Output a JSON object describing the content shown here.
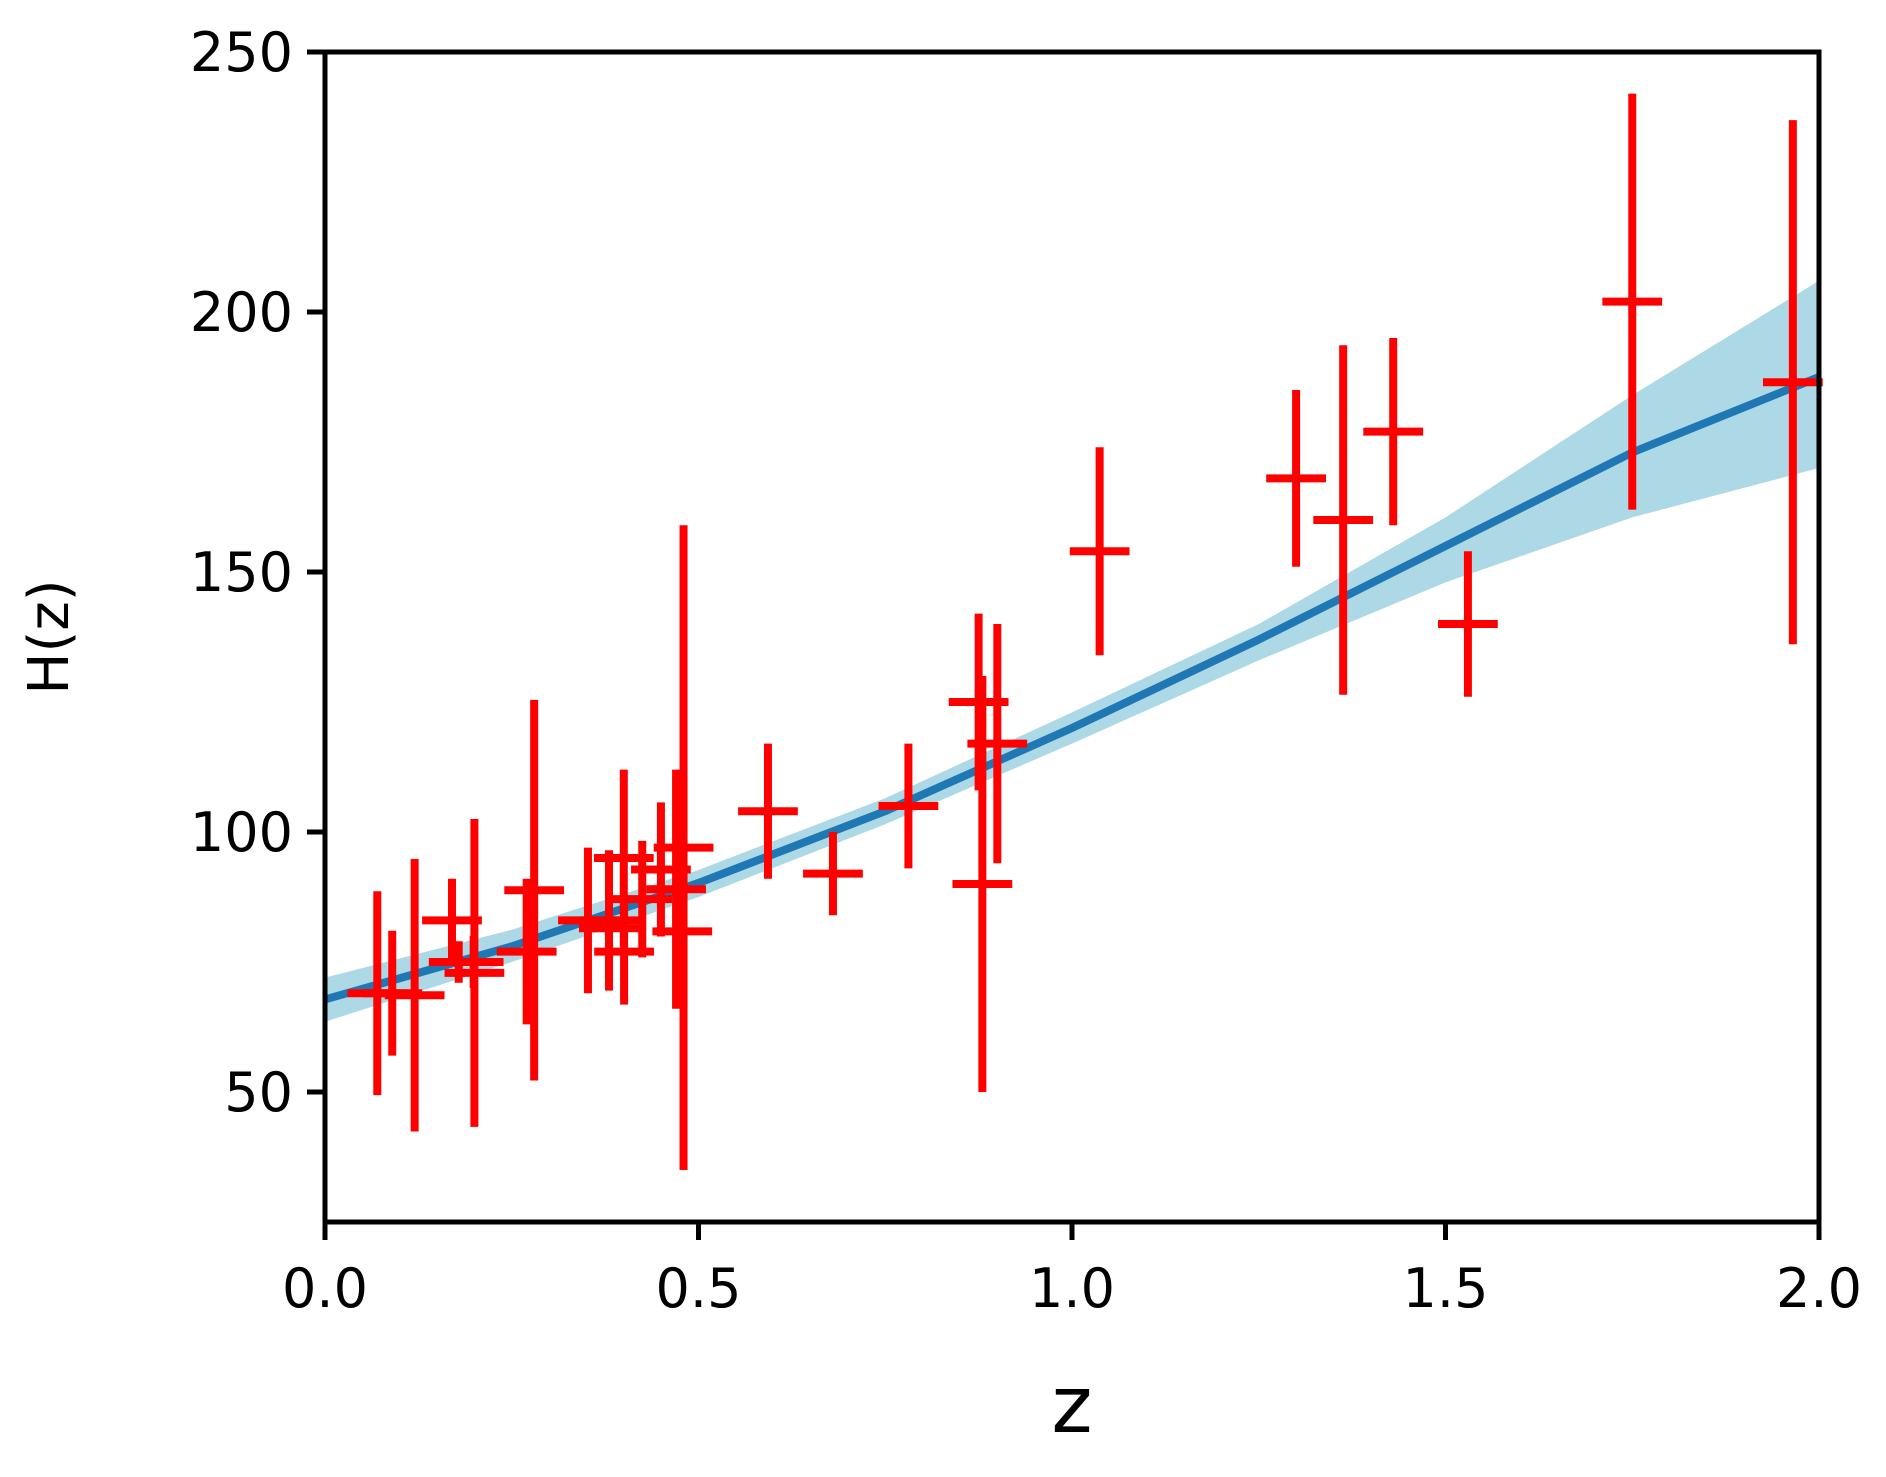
{
  "chart_data": {
    "type": "scatter",
    "title": "",
    "xlabel": "z",
    "ylabel": "H(z)",
    "xlim": [
      0.0,
      2.0
    ],
    "ylim": [
      25,
      250
    ],
    "xticks": [
      0.0,
      0.5,
      1.0,
      1.5,
      2.0
    ],
    "xtick_labels": [
      "0.0",
      "0.5",
      "1.0",
      "1.5",
      "2.0"
    ],
    "yticks": [
      50,
      100,
      150,
      200,
      250
    ],
    "ytick_labels": [
      "50",
      "100",
      "150",
      "200",
      "250"
    ],
    "grid": false,
    "legend": "none",
    "colors": {
      "data": "#ff0000",
      "fit_line": "#1f77b4",
      "band": "#add8e6",
      "axes": "#000000"
    },
    "series": [
      {
        "kind": "errorbar",
        "x": [
          0.07,
          0.09,
          0.12,
          0.17,
          0.179,
          0.199,
          0.2,
          0.27,
          0.28,
          0.352,
          0.38,
          0.3802,
          0.4,
          0.4004,
          0.4247,
          0.4497,
          0.47,
          0.4783,
          0.48,
          0.593,
          0.68,
          0.781,
          0.875,
          0.88,
          0.9,
          1.037,
          1.3,
          1.363,
          1.43,
          1.53,
          1.75,
          1.965
        ],
        "y": [
          69,
          69,
          68.6,
          83,
          75,
          75,
          72.9,
          77,
          88.8,
          83,
          81.5,
          83,
          95,
          77,
          87.1,
          92.8,
          89,
          80.9,
          97,
          104,
          92,
          105,
          125,
          90,
          117,
          154,
          168,
          160,
          177,
          140,
          202,
          186.5
        ],
        "yerr": [
          19.6,
          12,
          26.2,
          8,
          4,
          5,
          29.6,
          14,
          36.6,
          14,
          1.9,
          13.5,
          17,
          10.2,
          11.2,
          12.9,
          23,
          9,
          62,
          13,
          8,
          12,
          17,
          40,
          23,
          20,
          17,
          33.6,
          18,
          14,
          40,
          50.4
        ],
        "xerr": 0.04
      },
      {
        "kind": "fit",
        "x": [
          0.0,
          0.25,
          0.5,
          0.75,
          1.0,
          1.25,
          1.5,
          1.75,
          2.0
        ],
        "y": [
          67.8,
          78,
          90.2,
          104,
          120,
          137,
          155,
          173,
          187.5
        ],
        "lower": [
          63.5,
          75,
          87.5,
          101.5,
          117,
          133,
          148,
          160.5,
          170
        ],
        "upper": [
          72,
          81.2,
          92.7,
          106.5,
          123,
          140,
          160.5,
          184,
          206
        ]
      }
    ]
  }
}
